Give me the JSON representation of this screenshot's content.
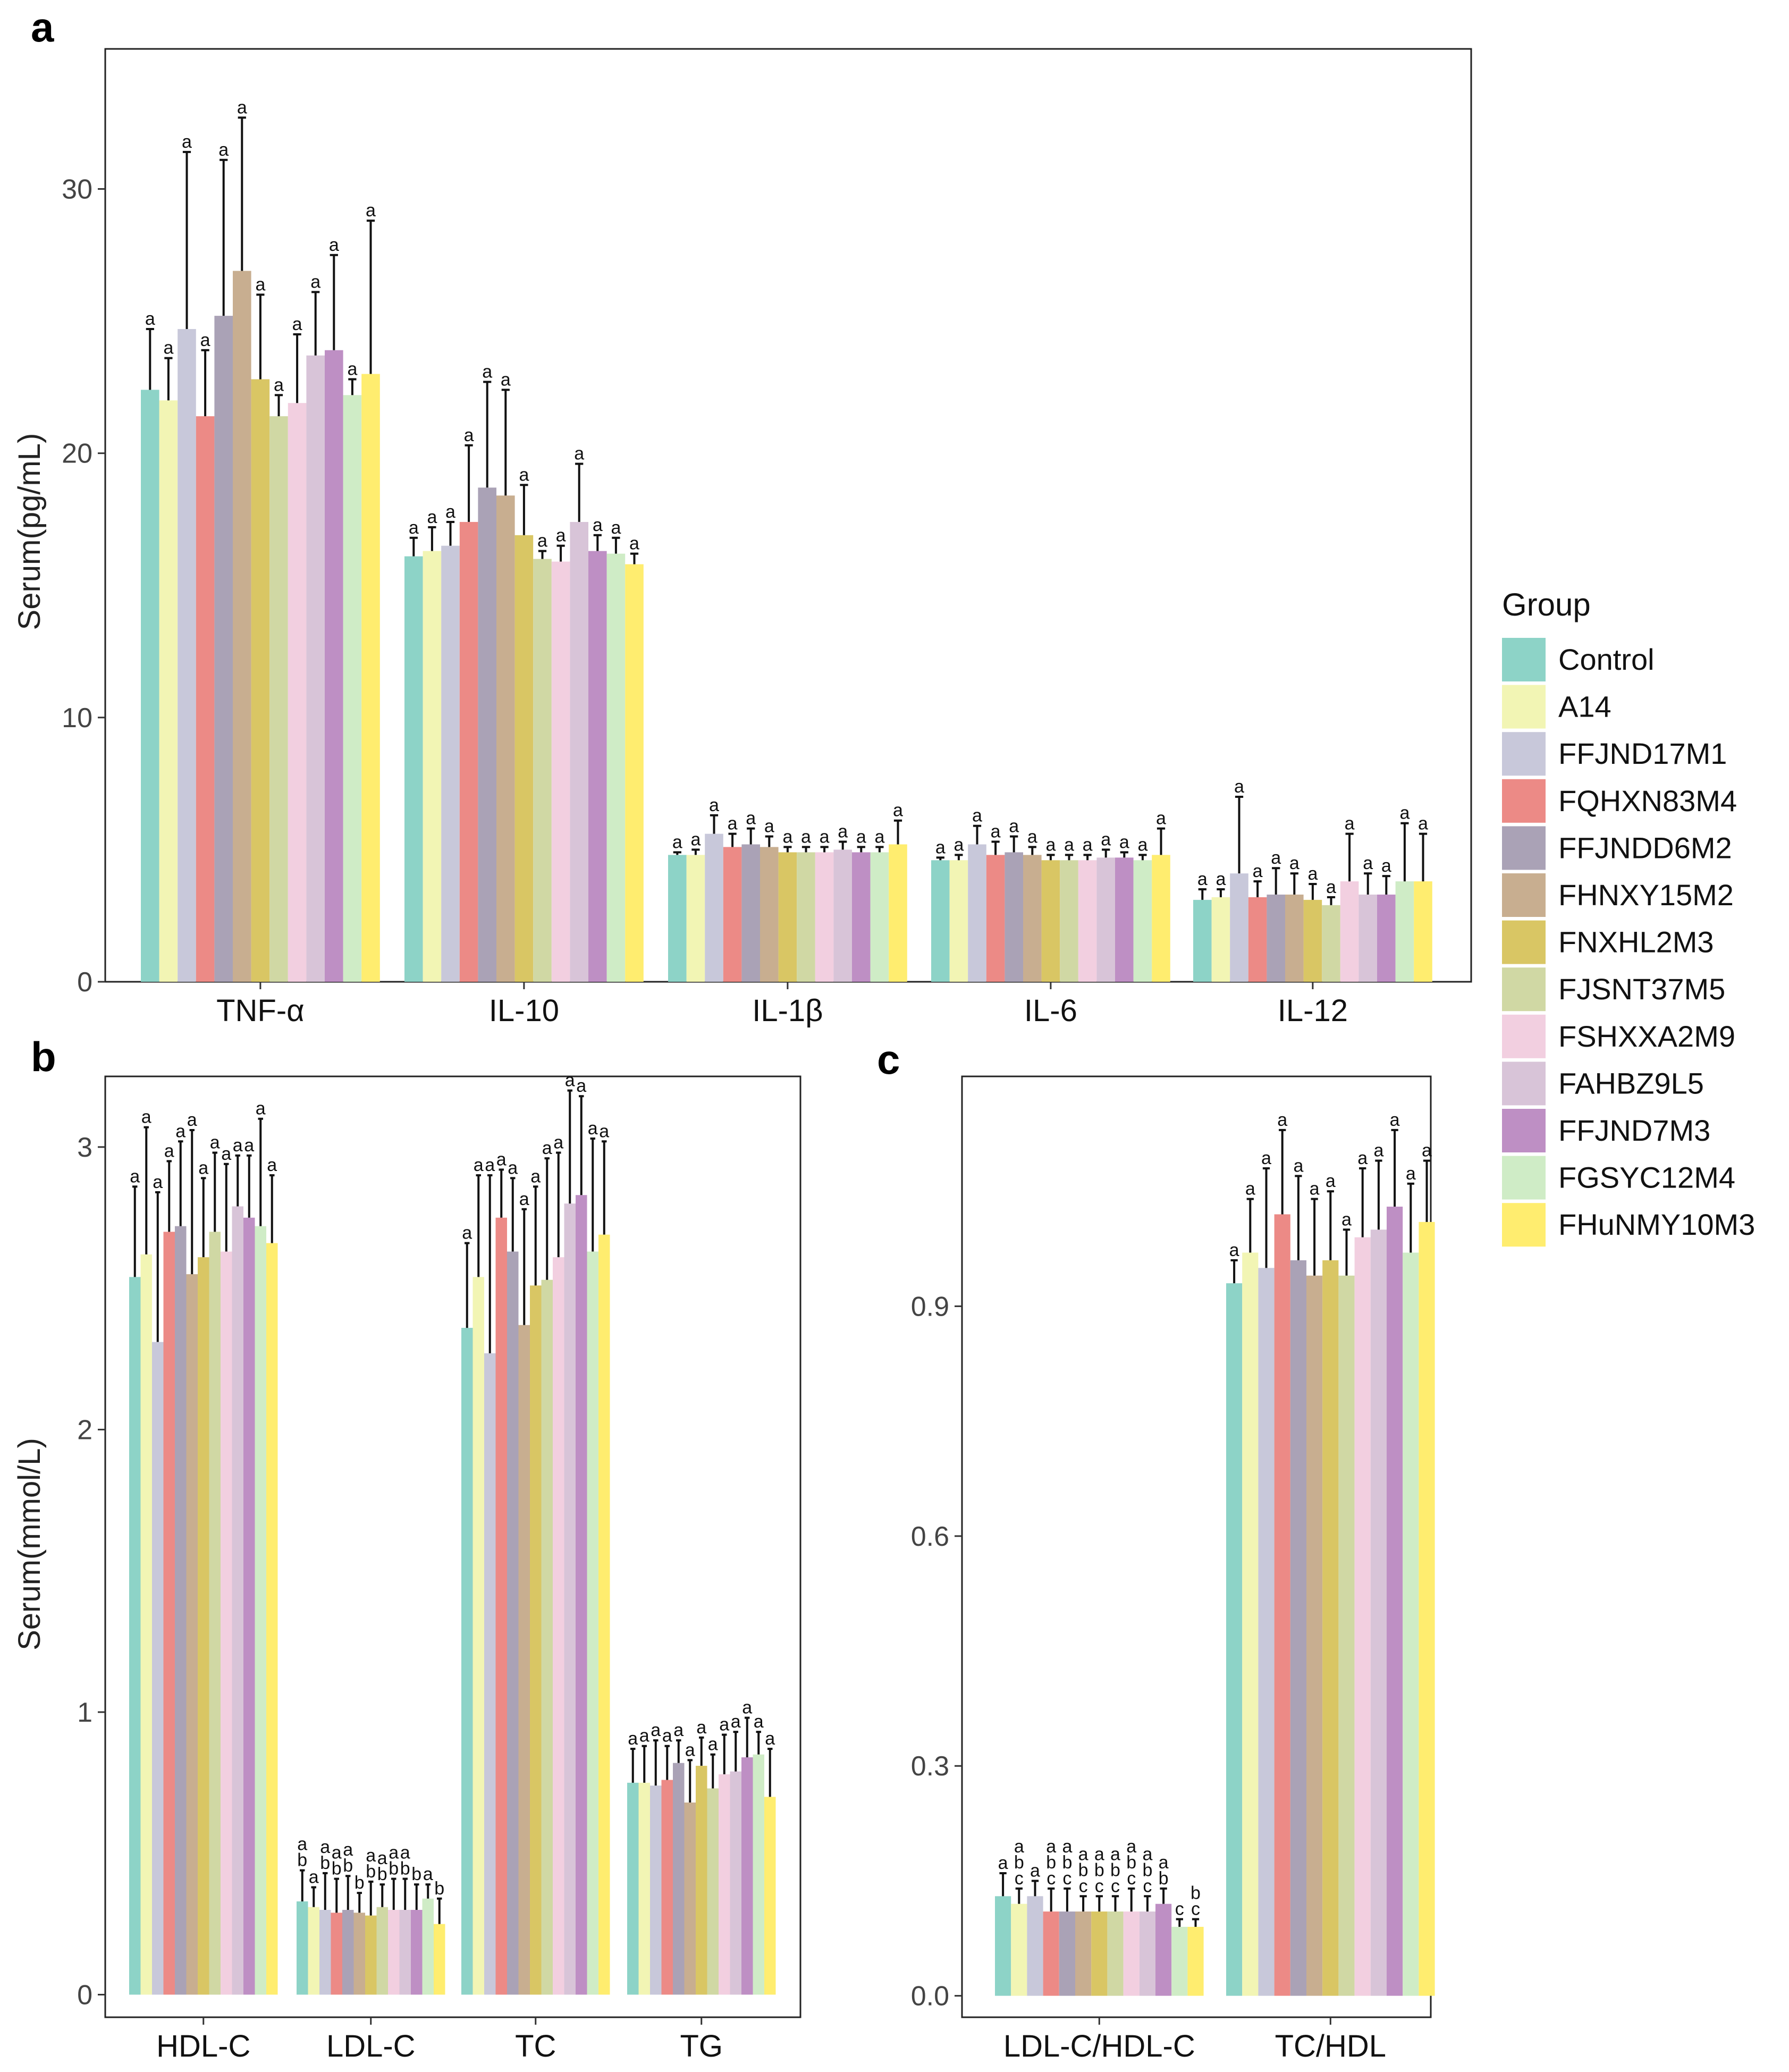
{
  "groups": [
    "Control",
    "A14",
    "FFJND17M1",
    "FQHXN83M4",
    "FFJNDD6M2",
    "FHNXY15M2",
    "FNXHL2M3",
    "FJSNT37M5",
    "FSHXXA2M9",
    "FAHBZ9L5",
    "FFJND7M3",
    "FGSYC12M4",
    "FHuNMY10M3"
  ],
  "colors": [
    "#8dd3c7",
    "#f2f5b4",
    "#c8c8da",
    "#ec8a86",
    "#aaa2b6",
    "#c8ae90",
    "#d9c664",
    "#d0d8a4",
    "#f2cfe0",
    "#d8c4d8",
    "#be8fc4",
    "#cfecc6",
    "#ffed6f"
  ],
  "legend": {
    "title": "Group"
  },
  "panel_labels": {
    "a": "a",
    "b": "b",
    "c": "c"
  },
  "chart_data": [
    {
      "type": "bar",
      "panel": "a",
      "ylabel": "Serum(pg/mL)",
      "xlabel": "",
      "ylim": [
        0,
        35.3
      ],
      "yticks": [
        0,
        10,
        20,
        30
      ],
      "ytick_labels": [
        "0",
        "10",
        "20",
        "30"
      ],
      "categories": [
        "TNF-α",
        "IL-10",
        "IL-1β",
        "IL-6",
        "IL-12"
      ],
      "values": [
        [
          22.4,
          22.0,
          24.7,
          21.4,
          25.2,
          26.9,
          22.8,
          21.4,
          21.9,
          23.7,
          23.9,
          22.2,
          23.0
        ],
        [
          16.1,
          16.3,
          16.5,
          17.4,
          18.7,
          18.4,
          16.9,
          16.0,
          15.9,
          17.4,
          16.3,
          16.2,
          15.8
        ],
        [
          4.8,
          4.8,
          5.6,
          5.1,
          5.2,
          5.1,
          4.9,
          4.9,
          4.9,
          5.0,
          4.9,
          4.9,
          5.2
        ],
        [
          4.6,
          4.6,
          5.2,
          4.8,
          4.9,
          4.8,
          4.6,
          4.6,
          4.6,
          4.7,
          4.7,
          4.6,
          4.8
        ],
        [
          3.1,
          3.2,
          4.1,
          3.2,
          3.3,
          3.3,
          3.1,
          2.9,
          3.8,
          3.3,
          3.3,
          3.8,
          3.8
        ]
      ],
      "errors": [
        [
          2.3,
          1.6,
          6.7,
          2.5,
          5.9,
          5.8,
          3.2,
          0.8,
          2.6,
          2.4,
          3.6,
          0.6,
          5.8
        ],
        [
          0.7,
          0.9,
          0.9,
          2.9,
          4.0,
          4.0,
          1.9,
          0.3,
          0.6,
          2.2,
          0.6,
          0.6,
          0.4
        ],
        [
          0.1,
          0.2,
          0.7,
          0.5,
          0.6,
          0.4,
          0.2,
          0.2,
          0.2,
          0.3,
          0.2,
          0.2,
          0.9
        ],
        [
          0.1,
          0.2,
          0.7,
          0.5,
          0.6,
          0.3,
          0.2,
          0.2,
          0.2,
          0.3,
          0.2,
          0.2,
          1.0
        ],
        [
          0.4,
          0.3,
          2.9,
          0.6,
          1.0,
          0.8,
          0.6,
          0.3,
          1.8,
          0.8,
          0.7,
          2.2,
          1.8
        ]
      ],
      "sig_letters": [
        [
          "a",
          "a",
          "a",
          "a",
          "a",
          "a",
          "a",
          "a",
          "a",
          "a",
          "a",
          "a",
          "a"
        ],
        [
          "a",
          "a",
          "a",
          "a",
          "a",
          "a",
          "a",
          "a",
          "a",
          "a",
          "a",
          "a",
          "a"
        ],
        [
          "a",
          "a",
          "a",
          "a",
          "a",
          "a",
          "a",
          "a",
          "a",
          "a",
          "a",
          "a",
          "a"
        ],
        [
          "a",
          "a",
          "a",
          "a",
          "a",
          "a",
          "a",
          "a",
          "a",
          "a",
          "a",
          "a",
          "a"
        ],
        [
          "a",
          "a",
          "a",
          "a",
          "a",
          "a",
          "a",
          "a",
          "a",
          "a",
          "a",
          "a",
          "a"
        ]
      ],
      "grid": false
    },
    {
      "type": "bar",
      "panel": "b",
      "ylabel": "Serum(mmol/L)",
      "xlabel": "",
      "ylim": [
        -0.08,
        3.25
      ],
      "yticks": [
        0,
        1,
        2,
        3
      ],
      "ytick_labels": [
        "0",
        "1",
        "2",
        "3"
      ],
      "categories": [
        "HDL-C",
        "LDL-C",
        "TC",
        "TG"
      ],
      "values": [
        [
          2.54,
          2.62,
          2.31,
          2.7,
          2.72,
          2.55,
          2.61,
          2.7,
          2.63,
          2.79,
          2.75,
          2.72,
          2.66
        ],
        [
          0.33,
          0.31,
          0.3,
          0.29,
          0.3,
          0.29,
          0.28,
          0.31,
          0.3,
          0.3,
          0.3,
          0.34,
          0.25
        ],
        [
          2.36,
          2.54,
          2.27,
          2.75,
          2.63,
          2.37,
          2.51,
          2.53,
          2.61,
          2.8,
          2.83,
          2.63,
          2.69
        ],
        [
          0.75,
          0.75,
          0.74,
          0.76,
          0.82,
          0.68,
          0.81,
          0.73,
          0.78,
          0.79,
          0.84,
          0.85,
          0.7
        ]
      ],
      "errors": [
        [
          0.32,
          0.45,
          0.53,
          0.25,
          0.3,
          0.51,
          0.28,
          0.28,
          0.31,
          0.18,
          0.22,
          0.38,
          0.24
        ],
        [
          0.11,
          0.07,
          0.13,
          0.12,
          0.12,
          0.07,
          0.12,
          0.08,
          0.11,
          0.11,
          0.09,
          0.05,
          0.09
        ],
        [
          0.3,
          0.36,
          0.63,
          0.17,
          0.26,
          0.41,
          0.35,
          0.43,
          0.37,
          0.4,
          0.35,
          0.4,
          0.33
        ],
        [
          0.12,
          0.13,
          0.16,
          0.12,
          0.08,
          0.15,
          0.1,
          0.12,
          0.14,
          0.14,
          0.14,
          0.08,
          0.17
        ]
      ],
      "sig_letters": [
        [
          "a",
          "a",
          "a",
          "a",
          "a",
          "a",
          "a",
          "a",
          "a",
          "a",
          "a",
          "a",
          "a"
        ],
        [
          "ab",
          "a",
          "ab",
          "ab",
          "ab",
          "b",
          "ab",
          "ab",
          "ab",
          "ab",
          "b",
          "a",
          "b"
        ],
        [
          "a",
          "a",
          "a",
          "a",
          "a",
          "a",
          "a",
          "a",
          "a",
          "a",
          "a",
          "a",
          "a"
        ],
        [
          "a",
          "a",
          "a",
          "a",
          "a",
          "a",
          "a",
          "a",
          "a",
          "a",
          "a",
          "a",
          "a"
        ]
      ],
      "grid": false
    },
    {
      "type": "bar",
      "panel": "c",
      "ylabel": "",
      "xlabel": "",
      "ylim": [
        -0.028,
        1.2
      ],
      "yticks": [
        0.0,
        0.3,
        0.6,
        0.9
      ],
      "ytick_labels": [
        "0.0",
        "0.3",
        "0.6",
        "0.9"
      ],
      "categories": [
        "LDL-C/HDL-C",
        "TC/HDL"
      ],
      "values": [
        [
          0.13,
          0.12,
          0.13,
          0.11,
          0.11,
          0.11,
          0.11,
          0.11,
          0.11,
          0.11,
          0.12,
          0.09,
          0.09
        ],
        [
          0.93,
          0.97,
          0.95,
          1.02,
          0.96,
          0.94,
          0.96,
          0.94,
          0.99,
          1.0,
          1.03,
          0.97,
          1.01
        ]
      ],
      "errors": [
        [
          0.03,
          0.02,
          0.02,
          0.03,
          0.03,
          0.02,
          0.02,
          0.02,
          0.03,
          0.02,
          0.02,
          0.01,
          0.01
        ],
        [
          0.03,
          0.07,
          0.13,
          0.11,
          0.11,
          0.1,
          0.09,
          0.06,
          0.09,
          0.09,
          0.1,
          0.09,
          0.08
        ]
      ],
      "sig_letters": [
        [
          "a",
          "abc",
          "a",
          "abc",
          "abc",
          "abc",
          "abc",
          "abc",
          "abc",
          "abc",
          "ab",
          "c",
          "bc"
        ],
        [
          "a",
          "a",
          "a",
          "a",
          "a",
          "a",
          "a",
          "a",
          "a",
          "a",
          "a",
          "a",
          "a"
        ]
      ],
      "grid": false
    }
  ]
}
